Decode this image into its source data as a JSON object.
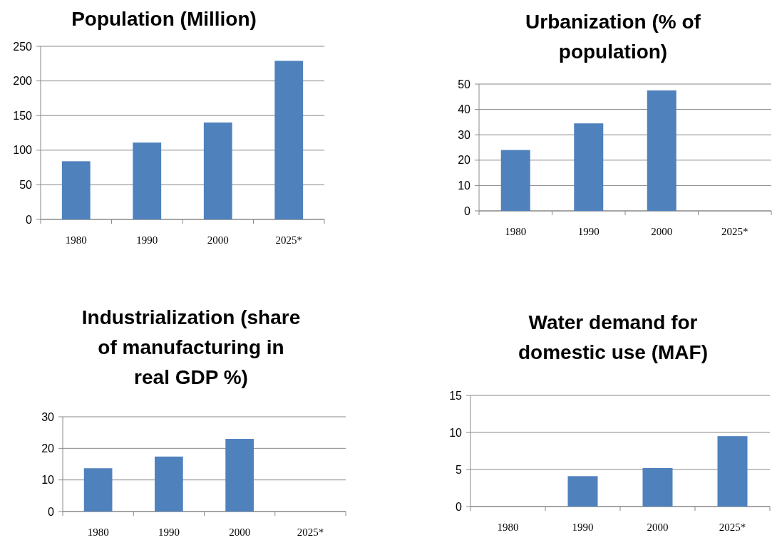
{
  "chart_data": [
    {
      "type": "bar",
      "title": "Population (Million)",
      "categories": [
        "1980",
        "1990",
        "2000",
        "2025*"
      ],
      "values": [
        84,
        111,
        140,
        229
      ],
      "color": "#4f81bd",
      "ylim": [
        0,
        250
      ],
      "yticks": [
        0,
        50,
        100,
        150,
        200,
        250
      ],
      "grid": "y"
    },
    {
      "type": "bar",
      "title": "Urbanization (% of\npopulation)",
      "categories": [
        "1980",
        "1990",
        "2000",
        "2025*"
      ],
      "values": [
        24,
        34.5,
        47.5,
        null
      ],
      "color": "#4f81bd",
      "ylim": [
        0,
        50
      ],
      "yticks": [
        0,
        10,
        20,
        30,
        40,
        50
      ],
      "grid": "y"
    },
    {
      "type": "bar",
      "title": "Industrialization (share\nof manufacturing in\nreal GDP %)",
      "categories": [
        "1980",
        "1990",
        "2000",
        "2025*"
      ],
      "values": [
        13.7,
        17.4,
        23,
        null
      ],
      "color": "#4f81bd",
      "ylim": [
        0,
        30
      ],
      "yticks": [
        0,
        10,
        20,
        30
      ],
      "grid": "y"
    },
    {
      "type": "bar",
      "title": "Water demand for\ndomestic use (MAF)",
      "categories": [
        "1980",
        "1990",
        "2000",
        "2025*"
      ],
      "values": [
        null,
        4.1,
        5.2,
        9.5
      ],
      "color": "#4f81bd",
      "ylim": [
        0,
        15
      ],
      "yticks": [
        0,
        5,
        10,
        15
      ],
      "grid": "y"
    }
  ]
}
